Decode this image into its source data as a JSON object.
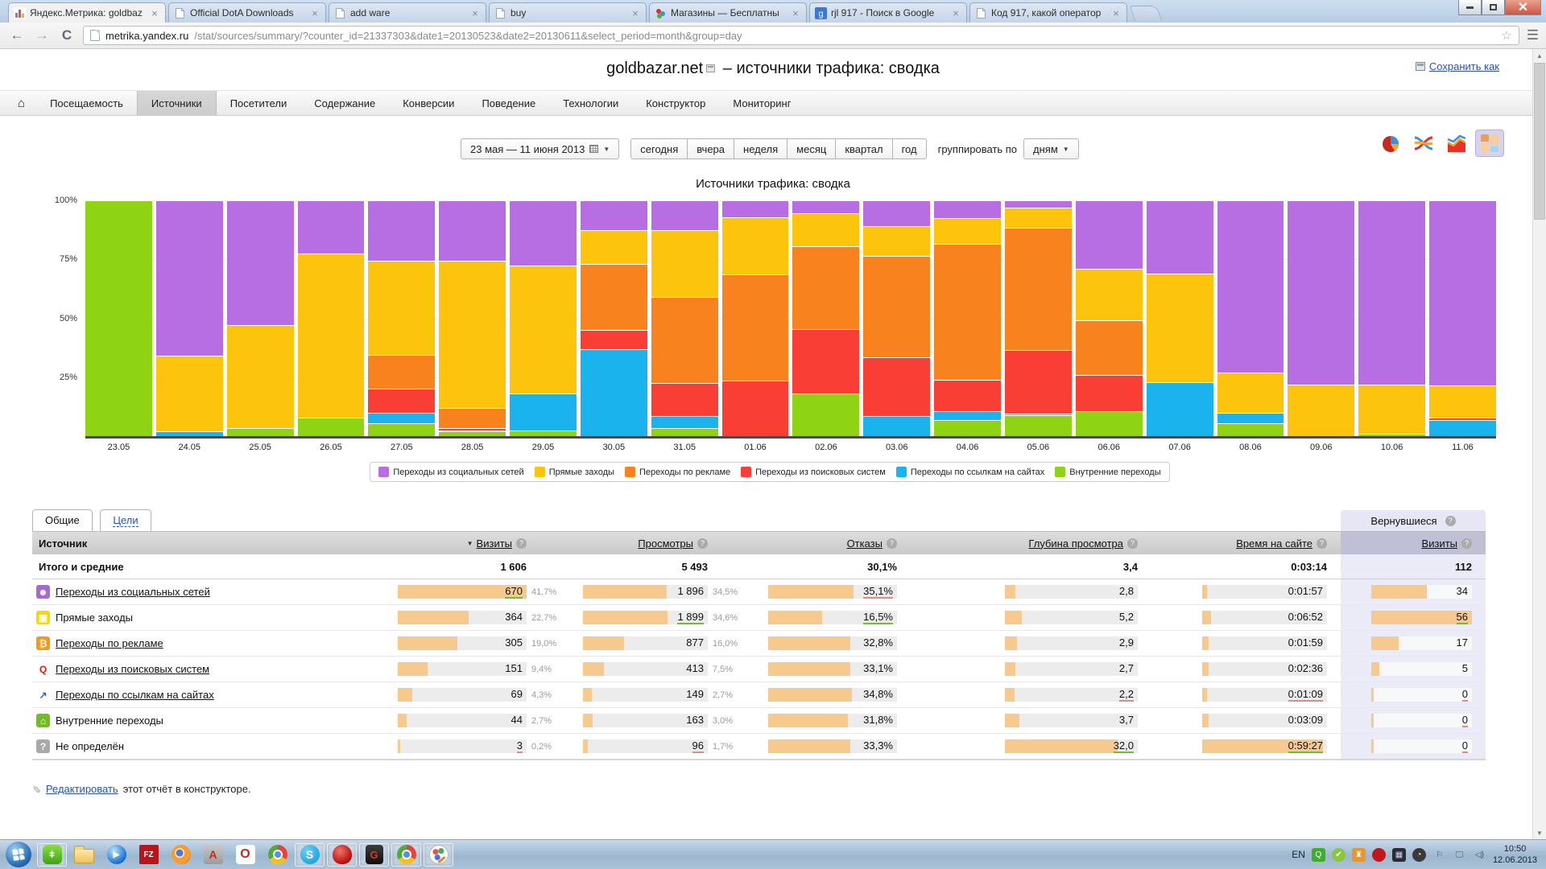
{
  "browser": {
    "tabs": [
      {
        "title": "Яндекс.Метрика: goldbaz",
        "favicon": "metrika"
      },
      {
        "title": "Official DotA Downloads",
        "favicon": "doc"
      },
      {
        "title": "add ware",
        "favicon": "doc"
      },
      {
        "title": "buy",
        "favicon": "doc"
      },
      {
        "title": "Магазины — Бесплатны",
        "favicon": "dots"
      },
      {
        "title": "rjl 917 - Поиск в Google",
        "favicon": "google"
      },
      {
        "title": "Код 917, какой оператор",
        "favicon": "doc"
      }
    ],
    "url_domain": "metrika.yandex.ru",
    "url_path": "/stat/sources/summary/?counter_id=21337303&date1=20130523&date2=20130611&select_period=month&group=day"
  },
  "page": {
    "title_site": "goldbazar.net",
    "title_rest": "– источники трафика: сводка",
    "save_link": "Сохранить как",
    "nav_items": [
      "Посещаемость",
      "Источники",
      "Посетители",
      "Содержание",
      "Конверсии",
      "Поведение",
      "Технологии",
      "Конструктор",
      "Мониторинг"
    ],
    "nav_active": "Источники",
    "date_range": "23 мая — 11 июня 2013",
    "period_buttons": [
      "сегодня",
      "вчера",
      "неделя",
      "месяц",
      "квартал",
      "год"
    ],
    "group_label": "группировать по",
    "group_value": "дням"
  },
  "chart_data": {
    "type": "bar",
    "stacked": true,
    "unit": "percent",
    "title": "Источники трафика: сводка",
    "x": [
      "23.05",
      "24.05",
      "25.05",
      "26.05",
      "27.05",
      "28.05",
      "29.05",
      "30.05",
      "31.05",
      "01.06",
      "02.06",
      "03.06",
      "04.06",
      "05.06",
      "06.06",
      "07.06",
      "08.06",
      "09.06",
      "10.06",
      "11.06"
    ],
    "ylim": [
      0,
      100
    ],
    "yticks": [
      "100%",
      "75%",
      "50%",
      "25%"
    ],
    "legend_position": "bottom",
    "series": [
      {
        "name": "Переходы из социальных сетей",
        "color": "#b76ee3",
        "values": [
          0,
          66,
          53,
          22.5,
          25.5,
          25.5,
          27.5,
          12.5,
          12.5,
          7,
          5.5,
          11,
          7.5,
          3,
          29,
          31,
          73,
          78,
          78,
          78.5
        ]
      },
      {
        "name": "Прямые заходы",
        "color": "#fdc40d",
        "values": [
          0,
          32,
          43.5,
          69.5,
          40,
          62.5,
          54.5,
          14.5,
          28.5,
          24.5,
          14,
          12.5,
          11,
          8.5,
          22,
          46,
          17,
          22,
          21,
          13.5
        ]
      },
      {
        "name": "Переходы по рекламе",
        "color": "#f8821d",
        "values": [
          0,
          0,
          0,
          0,
          14.5,
          8.5,
          0,
          28,
          36.5,
          45,
          35,
          43,
          57.5,
          52,
          23,
          0,
          0,
          0,
          0,
          0
        ]
      },
      {
        "name": "Переходы из поисковых систем",
        "color": "#f93f35",
        "values": [
          0,
          0,
          0,
          0,
          10,
          1,
          0,
          8,
          14,
          23.5,
          27.5,
          25,
          13.5,
          27,
          15.5,
          0,
          0,
          0,
          0,
          1
        ]
      },
      {
        "name": "Переходы по ссылкам на сайтах",
        "color": "#1ab3ee",
        "values": [
          0,
          2,
          0,
          0,
          4.5,
          0.5,
          15.5,
          37,
          5,
          0,
          0,
          8.5,
          3.5,
          0.5,
          0,
          23,
          4.5,
          0,
          0,
          7
        ]
      },
      {
        "name": "Внутренние переходы",
        "color": "#8fd414",
        "values": [
          100,
          0,
          3.5,
          8,
          5.5,
          2,
          2.5,
          0,
          3.5,
          0,
          18,
          0,
          7,
          9,
          10.5,
          0,
          5.5,
          0,
          1,
          0
        ]
      }
    ],
    "stack_order_bottom_up": [
      5,
      4,
      3,
      2,
      1,
      0
    ]
  },
  "table": {
    "tabs": [
      {
        "label": "Общие",
        "active": true
      },
      {
        "label": "Цели",
        "active": false
      }
    ],
    "returned_header": "Вернувшиеся",
    "returned_column": "Визиты",
    "columns": [
      "Источник",
      "Визиты",
      "Просмотры",
      "Отказы",
      "Глубина просмотра",
      "Время на сайте"
    ],
    "sorted_column": "Визиты",
    "totals": {
      "label": "Итого и средние",
      "visits": "1 606",
      "views": "5 493",
      "bounce": "30,1%",
      "depth": "3,4",
      "time": "0:03:14",
      "returned": "112"
    },
    "rows": [
      {
        "name": "Переходы из социальных сетей",
        "link": true,
        "icon": {
          "glyph": "☻",
          "bg": "#a968d8",
          "fg": "#ffffff"
        },
        "visits": {
          "v": "670",
          "pct": "41,7%",
          "fill": 1.0,
          "mark": "g"
        },
        "views": {
          "v": "1 896",
          "pct": "34,5%",
          "fill": 0.67,
          "mark": ""
        },
        "bounce": {
          "v": "35,1%",
          "fill": 0.66,
          "mark": "r"
        },
        "depth": {
          "v": "2,8",
          "fill": 0.08,
          "mark": ""
        },
        "time": {
          "v": "0:01:57",
          "fill": 0.04,
          "mark": ""
        },
        "ret": {
          "v": "34",
          "fill": 0.55,
          "mark": ""
        }
      },
      {
        "name": "Прямые заходы",
        "link": false,
        "icon": {
          "glyph": "▣",
          "bg": "#f5d800",
          "fg": "#ffffff"
        },
        "visits": {
          "v": "364",
          "pct": "22,7%",
          "fill": 0.55,
          "mark": ""
        },
        "views": {
          "v": "1 899",
          "pct": "34,6%",
          "fill": 0.68,
          "mark": "g"
        },
        "bounce": {
          "v": "16,5%",
          "fill": 0.42,
          "mark": "g"
        },
        "depth": {
          "v": "5,2",
          "fill": 0.13,
          "mark": ""
        },
        "time": {
          "v": "0:06:52",
          "fill": 0.07,
          "mark": ""
        },
        "ret": {
          "v": "56",
          "fill": 1.0,
          "mark": "g"
        }
      },
      {
        "name": "Переходы по рекламе",
        "link": true,
        "icon": {
          "glyph": "₿",
          "bg": "#f59a16",
          "fg": "#ffffff"
        },
        "visits": {
          "v": "305",
          "pct": "19,0%",
          "fill": 0.46,
          "mark": ""
        },
        "views": {
          "v": "877",
          "pct": "16,0%",
          "fill": 0.33,
          "mark": ""
        },
        "bounce": {
          "v": "32,8%",
          "fill": 0.64,
          "mark": ""
        },
        "depth": {
          "v": "2,9",
          "fill": 0.09,
          "mark": ""
        },
        "time": {
          "v": "0:01:59",
          "fill": 0.05,
          "mark": ""
        },
        "ret": {
          "v": "17",
          "fill": 0.27,
          "mark": ""
        }
      },
      {
        "name": "Переходы из поисковых систем",
        "link": true,
        "icon": {
          "glyph": "Q",
          "bg": "transparent",
          "fg": "#e01e10"
        },
        "visits": {
          "v": "151",
          "pct": "9,4%",
          "fill": 0.23,
          "mark": ""
        },
        "views": {
          "v": "413",
          "pct": "7,5%",
          "fill": 0.17,
          "mark": ""
        },
        "bounce": {
          "v": "33,1%",
          "fill": 0.64,
          "mark": ""
        },
        "depth": {
          "v": "2,7",
          "fill": 0.08,
          "mark": ""
        },
        "time": {
          "v": "0:02:36",
          "fill": 0.05,
          "mark": ""
        },
        "ret": {
          "v": "5",
          "fill": 0.08,
          "mark": ""
        }
      },
      {
        "name": "Переходы по ссылкам на сайтах",
        "link": true,
        "icon": {
          "glyph": "↗",
          "bg": "transparent",
          "fg": "#2b62d9"
        },
        "visits": {
          "v": "69",
          "pct": "4,3%",
          "fill": 0.11,
          "mark": ""
        },
        "views": {
          "v": "149",
          "pct": "2,7%",
          "fill": 0.07,
          "mark": ""
        },
        "bounce": {
          "v": "34,8%",
          "fill": 0.65,
          "mark": ""
        },
        "depth": {
          "v": "2,2",
          "fill": 0.07,
          "mark": "r"
        },
        "time": {
          "v": "0:01:09",
          "fill": 0.035,
          "mark": "r"
        },
        "ret": {
          "v": "0",
          "fill": 0.02,
          "mark": "r"
        }
      },
      {
        "name": "Внутренние переходы",
        "link": false,
        "icon": {
          "glyph": "⌂",
          "bg": "#6fbf23",
          "fg": "#ffffff"
        },
        "visits": {
          "v": "44",
          "pct": "2,7%",
          "fill": 0.07,
          "mark": ""
        },
        "views": {
          "v": "163",
          "pct": "3,0%",
          "fill": 0.08,
          "mark": ""
        },
        "bounce": {
          "v": "31,8%",
          "fill": 0.62,
          "mark": ""
        },
        "depth": {
          "v": "3,7",
          "fill": 0.11,
          "mark": ""
        },
        "time": {
          "v": "0:03:09",
          "fill": 0.05,
          "mark": ""
        },
        "ret": {
          "v": "0",
          "fill": 0.02,
          "mark": "r"
        }
      },
      {
        "name": "Не определён",
        "link": false,
        "icon": {
          "glyph": "?",
          "bg": "#a9a9a9",
          "fg": "#ffffff"
        },
        "visits": {
          "v": "3",
          "pct": "0,2%",
          "fill": 0.02,
          "mark": "r"
        },
        "views": {
          "v": "96",
          "pct": "1,7%",
          "fill": 0.04,
          "mark": "r"
        },
        "bounce": {
          "v": "33,3%",
          "fill": 0.64,
          "mark": ""
        },
        "depth": {
          "v": "32,0",
          "fill": 0.85,
          "mark": "g"
        },
        "time": {
          "v": "0:59:27",
          "fill": 0.97,
          "mark": "g"
        },
        "ret": {
          "v": "0",
          "fill": 0.02,
          "mark": "r"
        }
      }
    ]
  },
  "edit": {
    "link": "Редактировать",
    "rest": "этот отчёт в конструкторе."
  },
  "taskbar": {
    "items": [
      {
        "name": "voip-app",
        "style": "ic-voip",
        "glyph": "ǂ",
        "boxed": true
      },
      {
        "name": "explorer",
        "style": "ic-folder",
        "glyph": "",
        "boxed": false
      },
      {
        "name": "media-player",
        "style": "ic-wmp",
        "glyph": "▶",
        "boxed": false
      },
      {
        "name": "filezilla",
        "style": "ic-fz",
        "glyph": "FZ",
        "boxed": false
      },
      {
        "name": "firefox",
        "style": "ic-ff",
        "glyph": "",
        "boxed": false
      },
      {
        "name": "adobe-reader",
        "style": "ic-pdf",
        "glyph": "A",
        "boxed": false
      },
      {
        "name": "opera",
        "style": "ic-opera",
        "glyph": "O",
        "boxed": false
      },
      {
        "name": "chrome",
        "style": "ic-chrome",
        "glyph": "",
        "boxed": false
      },
      {
        "name": "skype",
        "style": "ic-skype",
        "glyph": "S",
        "boxed": true
      },
      {
        "name": "game-mascot-app",
        "style": "ic-mascot",
        "glyph": "",
        "boxed": true
      },
      {
        "name": "garena",
        "style": "ic-garena",
        "glyph": "G",
        "boxed": true
      },
      {
        "name": "chrome-active",
        "style": "ic-chrome",
        "glyph": "",
        "boxed": true
      },
      {
        "name": "paint-app",
        "style": "ic-paint",
        "glyph": "",
        "boxed": true
      }
    ],
    "tray": {
      "lang": "EN",
      "icons": [
        {
          "name": "qip",
          "glyph": "Q",
          "bg": "#3faf2a",
          "fg": "#ffffff"
        },
        {
          "name": "update-check",
          "glyph": "✔",
          "bg": "#8cc63f",
          "fg": "#ffffff",
          "round": true
        },
        {
          "name": "tower-app",
          "glyph": "♜",
          "bg": "#e8962e",
          "fg": "#ffffff"
        },
        {
          "name": "red-bag-app",
          "glyph": "",
          "bg": "#c1161c",
          "fg": "#ffffff",
          "round": true
        },
        {
          "name": "dark-grid-app",
          "glyph": "▦",
          "bg": "#2b2b33",
          "fg": "#cfd6ff"
        },
        {
          "name": "timer-app",
          "glyph": "◔",
          "bg": "#3a3a3a",
          "fg": "#ffffff",
          "round": true
        },
        {
          "name": "action-center-flag",
          "glyph": "⚐",
          "bg": "transparent",
          "fg": "#46505a"
        },
        {
          "name": "network",
          "glyph": "🖵",
          "bg": "transparent",
          "fg": "#46505a"
        },
        {
          "name": "volume",
          "glyph": "◁)",
          "bg": "transparent",
          "fg": "#46505a"
        }
      ],
      "time": "10:50",
      "date": "12.06.2013"
    }
  }
}
